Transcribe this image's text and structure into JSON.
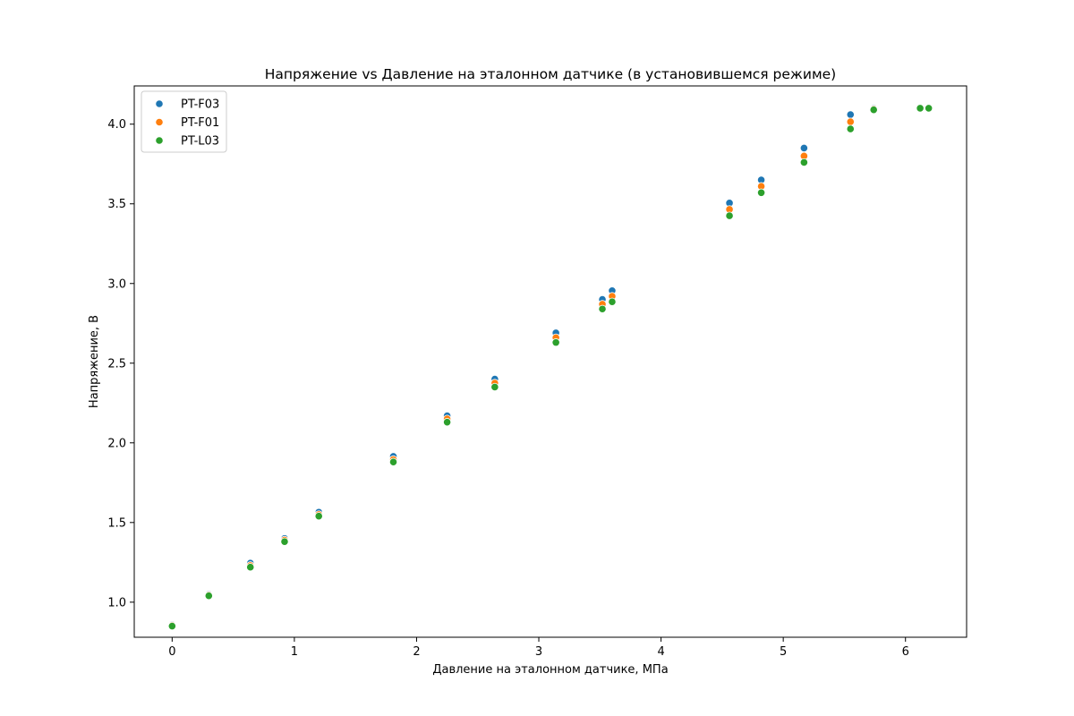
{
  "chart_data": {
    "type": "scatter",
    "title": "Напряжение vs Давление на эталонном датчике (в установившемся режиме)",
    "xlabel": "Давление на эталонном датчике, МПа",
    "ylabel": "Напряжение, В",
    "xlim": [
      -0.31,
      6.5
    ],
    "ylim": [
      0.78,
      4.24
    ],
    "xticks": [
      0,
      1,
      2,
      3,
      4,
      5,
      6
    ],
    "yticks": [
      1.0,
      1.5,
      2.0,
      2.5,
      3.0,
      3.5,
      4.0
    ],
    "xtick_labels": [
      "0",
      "1",
      "2",
      "3",
      "4",
      "5",
      "6"
    ],
    "ytick_labels": [
      "1.0",
      "1.5",
      "2.0",
      "2.5",
      "3.0",
      "3.5",
      "4.0"
    ],
    "grid": false,
    "legend_position": "top-left",
    "series": [
      {
        "name": "PT-F03",
        "color": "#1f77b4",
        "points": [
          [
            0.0,
            0.86
          ],
          [
            0.3,
            1.05
          ],
          [
            0.64,
            1.245
          ],
          [
            0.92,
            1.4
          ],
          [
            1.2,
            1.565
          ],
          [
            1.81,
            1.915
          ],
          [
            2.25,
            2.17
          ],
          [
            2.64,
            2.4
          ],
          [
            3.14,
            2.69
          ],
          [
            3.52,
            2.9
          ],
          [
            3.6,
            2.955
          ],
          [
            4.56,
            3.505
          ],
          [
            4.82,
            3.65
          ],
          [
            5.17,
            3.85
          ],
          [
            5.55,
            4.06
          ],
          [
            5.74,
            4.1
          ],
          [
            6.12,
            4.1
          ],
          [
            6.19,
            4.1
          ]
        ]
      },
      {
        "name": "PT-F01",
        "color": "#ff7f0e",
        "points": [
          [
            0.0,
            0.855
          ],
          [
            0.3,
            1.045
          ],
          [
            0.64,
            1.23
          ],
          [
            0.92,
            1.39
          ],
          [
            1.2,
            1.55
          ],
          [
            1.81,
            1.895
          ],
          [
            2.25,
            2.15
          ],
          [
            2.64,
            2.375
          ],
          [
            3.14,
            2.66
          ],
          [
            3.52,
            2.87
          ],
          [
            3.6,
            2.92
          ],
          [
            4.56,
            3.465
          ],
          [
            4.82,
            3.61
          ],
          [
            5.17,
            3.8
          ],
          [
            5.55,
            4.015
          ],
          [
            5.74,
            4.095
          ],
          [
            6.12,
            4.1
          ],
          [
            6.19,
            4.1
          ]
        ]
      },
      {
        "name": "PT-L03",
        "color": "#2ca02c",
        "points": [
          [
            0.0,
            0.85
          ],
          [
            0.3,
            1.04
          ],
          [
            0.64,
            1.22
          ],
          [
            0.92,
            1.38
          ],
          [
            1.2,
            1.54
          ],
          [
            1.81,
            1.88
          ],
          [
            2.25,
            2.13
          ],
          [
            2.64,
            2.35
          ],
          [
            3.14,
            2.63
          ],
          [
            3.52,
            2.84
          ],
          [
            3.6,
            2.885
          ],
          [
            4.56,
            3.425
          ],
          [
            4.82,
            3.57
          ],
          [
            5.17,
            3.76
          ],
          [
            5.55,
            3.97
          ],
          [
            5.74,
            4.09
          ],
          [
            6.12,
            4.1
          ],
          [
            6.19,
            4.1
          ]
        ]
      }
    ]
  }
}
